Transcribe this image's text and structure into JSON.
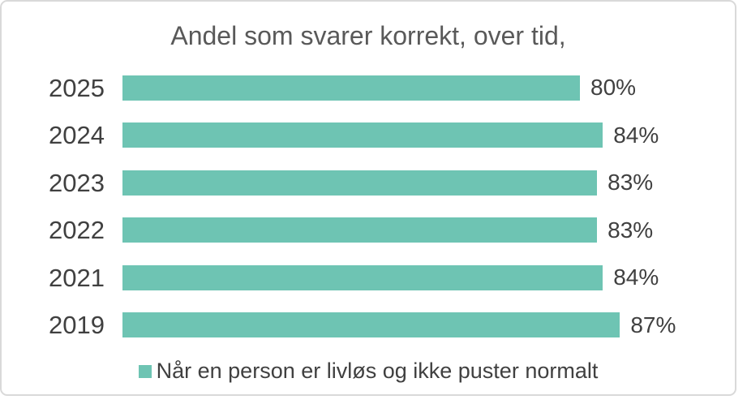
{
  "chart_data": {
    "type": "bar",
    "orientation": "horizontal",
    "title": "Andel som svarer korrekt, over tid,",
    "categories": [
      "2025",
      "2024",
      "2023",
      "2022",
      "2021",
      "2019"
    ],
    "values": [
      80,
      84,
      83,
      83,
      84,
      87
    ],
    "value_labels": [
      "80%",
      "84%",
      "83%",
      "83%",
      "84%",
      "87%"
    ],
    "series": [
      {
        "name": "Når en person er livløs og ikke puster normalt",
        "values": [
          80,
          84,
          83,
          83,
          84,
          87
        ]
      }
    ],
    "xlabel": "",
    "ylabel": "",
    "xlim": [
      0,
      100
    ],
    "grid": false,
    "axes_visible": false,
    "data_labels": "outside-end",
    "legend": {
      "position": "bottom-center",
      "entries": [
        "Når en person er livløs og ikke puster normalt"
      ]
    },
    "colors": {
      "bar": "#6EC4B3",
      "legend_marker": "#6EC4B3",
      "title_text": "#595959",
      "label_text": "#404040",
      "frame_border": "#D9D9D9",
      "background": "#FFFFFF"
    }
  }
}
